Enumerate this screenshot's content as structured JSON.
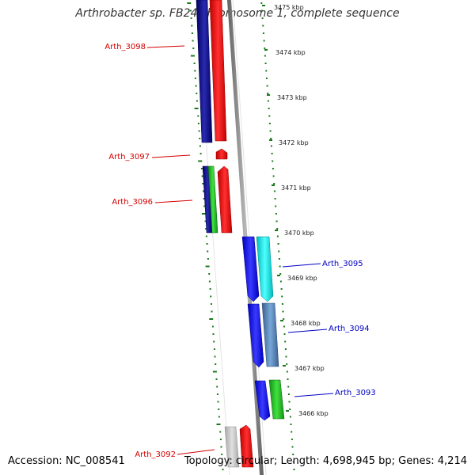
{
  "header": {
    "title": "Arthrobacter sp. FB24 chromosome 1, complete sequence"
  },
  "footer": {
    "accession": "Accession: NC_008541",
    "topology": "Topology: circular; Length: 4,698,945 bp; Genes: 4,214"
  },
  "map": {
    "kbp_ticks": [
      "3475 kbp",
      "3474 kbp",
      "3473 kbp",
      "3472 kbp",
      "3471 kbp",
      "3470 kbp",
      "3469 kbp",
      "3468 kbp",
      "3467 kbp",
      "3466 kbp"
    ],
    "reverse_gene_labels": [
      "Arth_3098",
      "Arth_3097",
      "Arth_3096",
      "Arth_3092"
    ],
    "forward_gene_labels": [
      "Arth_3095",
      "Arth_3094",
      "Arth_3093"
    ],
    "colors": {
      "reverse_label": "#d40000",
      "forward_label": "#0000c0",
      "backbone": "#808080",
      "tick": "#1a7a1a",
      "navy": "#10107a",
      "red": "#ff0000",
      "green": "#22b522",
      "blue": "#1a1aee",
      "cyan": "#10e8e8",
      "steelblue": "#4a7ab0",
      "gray": "#c0c0c0"
    }
  }
}
